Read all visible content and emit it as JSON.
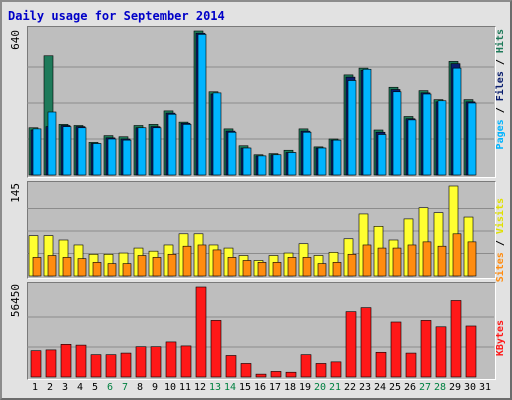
{
  "title": "Daily usage for September 2014",
  "colors": {
    "pages": "#1e7a5a",
    "files": "#0a1e6e",
    "hits": "#00b4ff",
    "visits": "#ffff30",
    "sites": "#ff8c10",
    "kbytes": "#ff1818",
    "weekend_label": "#008040"
  },
  "panels": {
    "hits": {
      "max_label": "640",
      "legend": [
        "Pages",
        "Files",
        "Hits"
      ]
    },
    "visits": {
      "max_label": "145",
      "legend": [
        "Sites",
        "Visits"
      ]
    },
    "kbytes": {
      "max_label": "56450",
      "legend": [
        "KBytes"
      ]
    }
  },
  "chart_data": [
    {
      "type": "bar",
      "title": "Daily usage for September 2014",
      "categories": [
        "1",
        "2",
        "3",
        "4",
        "5",
        "6",
        "7",
        "8",
        "9",
        "10",
        "11",
        "12",
        "13",
        "14",
        "15",
        "16",
        "17",
        "18",
        "19",
        "20",
        "21",
        "22",
        "23",
        "24",
        "25",
        "26",
        "27",
        "28",
        "29",
        "30",
        "31"
      ],
      "weekend_days": [
        "6",
        "7",
        "13",
        "14",
        "20",
        "21",
        "27",
        "28"
      ],
      "ylim": [
        0,
        640
      ],
      "series": [
        {
          "name": "Pages",
          "values": [
            210,
            530,
            225,
            220,
            145,
            175,
            170,
            220,
            225,
            285,
            235,
            640,
            370,
            205,
            130,
            90,
            95,
            110,
            205,
            125,
            160,
            445,
            475,
            200,
            390,
            260,
            375,
            335,
            505,
            335,
            0
          ]
        },
        {
          "name": "Files",
          "values": [
            200,
            215,
            220,
            215,
            140,
            165,
            160,
            210,
            215,
            275,
            230,
            630,
            360,
            195,
            120,
            85,
            90,
            100,
            195,
            120,
            155,
            435,
            465,
            190,
            380,
            250,
            365,
            325,
            495,
            325,
            0
          ]
        },
        {
          "name": "Hits",
          "values": [
            205,
            280,
            215,
            210,
            140,
            160,
            155,
            210,
            210,
            270,
            225,
            625,
            365,
            190,
            120,
            85,
            90,
            100,
            190,
            120,
            155,
            420,
            470,
            180,
            370,
            245,
            360,
            330,
            475,
            320,
            0
          ]
        }
      ]
    },
    {
      "type": "bar",
      "categories": [
        "1",
        "2",
        "3",
        "4",
        "5",
        "6",
        "7",
        "8",
        "9",
        "10",
        "11",
        "12",
        "13",
        "14",
        "15",
        "16",
        "17",
        "18",
        "19",
        "20",
        "21",
        "22",
        "23",
        "24",
        "25",
        "26",
        "27",
        "28",
        "29",
        "30",
        "31"
      ],
      "ylim": [
        0,
        145
      ],
      "series": [
        {
          "name": "Visits",
          "values": [
            65,
            65,
            58,
            50,
            35,
            35,
            37,
            45,
            40,
            50,
            68,
            68,
            50,
            45,
            33,
            25,
            33,
            37,
            52,
            33,
            38,
            60,
            100,
            80,
            58,
            92,
            110,
            102,
            145,
            95,
            0
          ]
        },
        {
          "name": "Sites",
          "values": [
            30,
            33,
            30,
            28,
            22,
            20,
            20,
            33,
            30,
            35,
            48,
            50,
            42,
            30,
            25,
            22,
            22,
            30,
            30,
            20,
            22,
            35,
            50,
            45,
            45,
            50,
            55,
            48,
            68,
            55,
            0
          ]
        }
      ]
    },
    {
      "type": "bar",
      "categories": [
        "1",
        "2",
        "3",
        "4",
        "5",
        "6",
        "7",
        "8",
        "9",
        "10",
        "11",
        "12",
        "13",
        "14",
        "15",
        "16",
        "17",
        "18",
        "19",
        "20",
        "21",
        "22",
        "23",
        "24",
        "25",
        "26",
        "27",
        "28",
        "29",
        "30",
        "31"
      ],
      "ylim": [
        0,
        56450
      ],
      "series": [
        {
          "name": "KBytes",
          "values": [
            16500,
            17000,
            20500,
            20000,
            14000,
            14000,
            15000,
            19000,
            19000,
            22000,
            19500,
            56450,
            35500,
            13500,
            8500,
            1800,
            3500,
            3000,
            14000,
            8500,
            9500,
            41000,
            43500,
            15500,
            34500,
            15000,
            35500,
            31500,
            48000,
            32000,
            0
          ]
        }
      ]
    }
  ]
}
